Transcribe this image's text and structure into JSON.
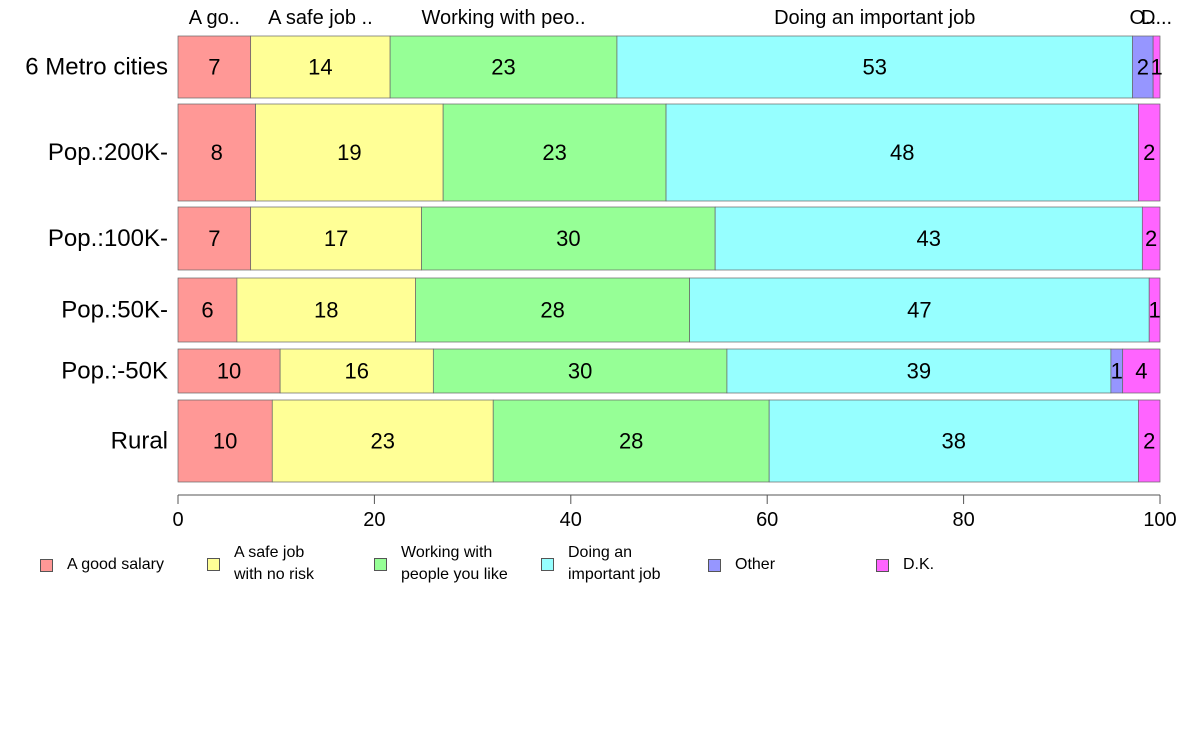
{
  "chart_data": {
    "type": "bar",
    "orientation": "horizontal",
    "stacked": true,
    "categories": [
      "6 Metro cities",
      "Pop.:200K-",
      "Pop.:100K-",
      "Pop.:50K-",
      "Pop.:-50K",
      "Rural"
    ],
    "series": [
      {
        "name": "A good salary",
        "color": "#ff9896",
        "values": [
          7.4,
          7.9,
          7.4,
          6.0,
          10.4,
          9.6
        ],
        "labels": [
          "7",
          "8",
          "7",
          "6",
          "10",
          "10"
        ]
      },
      {
        "name": "A safe job with no risk",
        "color": "#ffff96",
        "values": [
          14.2,
          19.1,
          17.4,
          18.2,
          15.6,
          22.5
        ],
        "labels": [
          "14",
          "19",
          "17",
          "18",
          "16",
          "23"
        ]
      },
      {
        "name": "Working with people you like",
        "color": "#96ff96",
        "values": [
          23.1,
          22.7,
          29.9,
          27.9,
          29.9,
          28.1
        ],
        "labels": [
          "23",
          "23",
          "30",
          "28",
          "30",
          "28"
        ]
      },
      {
        "name": "Doing an important job",
        "color": "#96ffff",
        "values": [
          52.5,
          48.1,
          43.5,
          46.8,
          39.1,
          37.6
        ],
        "labels": [
          "53",
          "48",
          "43",
          "47",
          "39",
          "38"
        ]
      },
      {
        "name": "Other",
        "color": "#9696ff",
        "values": [
          2.1,
          0,
          0,
          0,
          1.2,
          0
        ],
        "labels": [
          "2",
          "",
          "",
          "",
          "1",
          ""
        ]
      },
      {
        "name": "D.K.",
        "color": "#ff64ff",
        "values": [
          0.7,
          2.2,
          1.8,
          1.1,
          3.8,
          2.2
        ],
        "labels": [
          "1",
          "2",
          "2",
          "1",
          "4",
          "2"
        ]
      }
    ],
    "top_labels": [
      "A go..",
      "A safe job ..",
      "Working with peo..",
      "Doing an important job",
      "O..",
      "D..."
    ],
    "xlim": [
      0,
      100
    ],
    "xticks": [
      "0",
      "20",
      "40",
      "60",
      "80",
      "100"
    ],
    "title": "",
    "xlabel": "",
    "ylabel": "",
    "legend_position": "bottom",
    "grid": false
  },
  "legend": {
    "items": [
      {
        "label": "A good salary",
        "color": "#ff9896"
      },
      {
        "label": "A safe job\nwith no risk",
        "color": "#ffff96"
      },
      {
        "label": "Working with\npeople you like",
        "color": "#96ff96"
      },
      {
        "label": "Doing an\nimportant job",
        "color": "#96ffff"
      },
      {
        "label": "Other",
        "color": "#9696ff"
      },
      {
        "label": "D.K.",
        "color": "#ff64ff"
      }
    ]
  }
}
